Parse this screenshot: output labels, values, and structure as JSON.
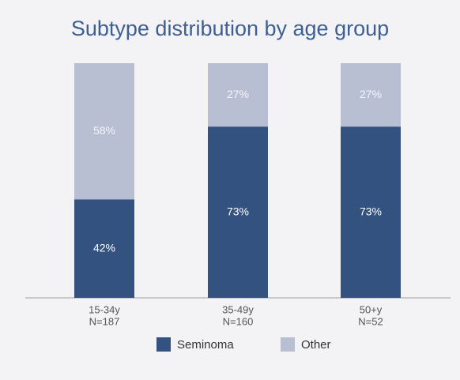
{
  "chart_data": {
    "type": "stacked_bar",
    "title": "Subtype distribution by age group",
    "categories": [
      [
        "15-34y",
        "N=187"
      ],
      [
        "35-49y",
        "N=160"
      ],
      [
        "50+y",
        "N=52"
      ]
    ],
    "series": [
      {
        "name": "Seminoma",
        "color": "#34527f",
        "values": [
          42,
          73,
          73
        ],
        "value_labels": [
          "42%",
          "73%",
          "73%"
        ]
      },
      {
        "name": "Other",
        "color": "#b9bfd2",
        "values": [
          58,
          27,
          27
        ],
        "value_labels": [
          "58%",
          "27%",
          "27%"
        ]
      }
    ],
    "ylim": [
      0,
      100
    ]
  }
}
